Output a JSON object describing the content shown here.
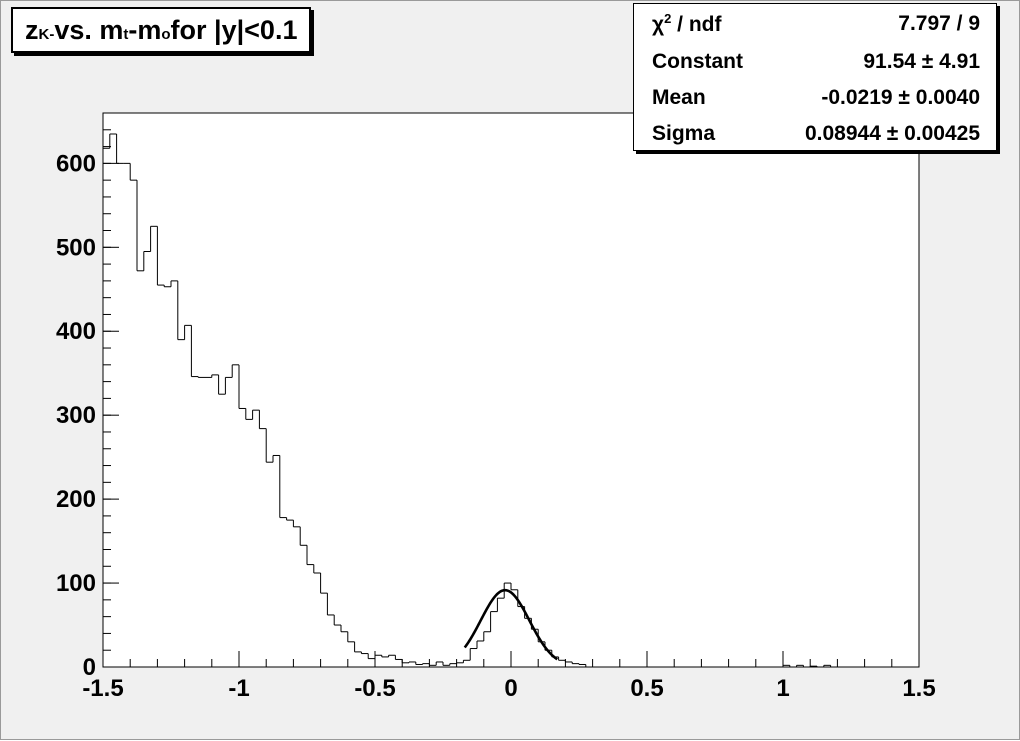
{
  "title": {
    "main": "z",
    "sub": "K-",
    "middle": " vs. m",
    "sub2": "t",
    "middle2": "-m",
    "sub3": "o",
    "tail": " for |y|<0.1"
  },
  "stats": {
    "chi2_symbol": "χ",
    "chi2_exp": "2",
    "chi2_label": " / ndf",
    "chi2_value": "7.797 / 9",
    "constant_label": "Constant",
    "constant_value": "91.54 ± 4.91",
    "mean_label": "Mean",
    "mean_value": "-0.0219 ± 0.0040",
    "sigma_label": "Sigma",
    "sigma_value": "0.08944 ± 0.00425"
  },
  "colors": {
    "frame_bg": "#f0f0f0",
    "plot_bg": "#ffffff",
    "line": "#000000"
  },
  "chart_data": {
    "type": "histogram",
    "title": "zK- vs. mt-mo for |y|<0.1",
    "xlim": [
      -1.5,
      1.5
    ],
    "ylim": [
      0,
      660
    ],
    "x_ticks": [
      "-1.5",
      "-1",
      "-0.5",
      "0",
      "0.5",
      "1",
      "1.5"
    ],
    "y_ticks": [
      "0",
      "100",
      "200",
      "300",
      "400",
      "500",
      "600"
    ],
    "bin_width": 0.025,
    "bins": [
      [
        -1.5,
        618
      ],
      [
        -1.475,
        635
      ],
      [
        -1.45,
        600
      ],
      [
        -1.425,
        600
      ],
      [
        -1.4,
        580
      ],
      [
        -1.375,
        472
      ],
      [
        -1.35,
        495
      ],
      [
        -1.325,
        525
      ],
      [
        -1.3,
        455
      ],
      [
        -1.275,
        453
      ],
      [
        -1.25,
        460
      ],
      [
        -1.225,
        390
      ],
      [
        -1.2,
        407
      ],
      [
        -1.175,
        346
      ],
      [
        -1.15,
        345
      ],
      [
        -1.125,
        345
      ],
      [
        -1.1,
        348
      ],
      [
        -1.075,
        325
      ],
      [
        -1.05,
        345
      ],
      [
        -1.025,
        360
      ],
      [
        -1.0,
        308
      ],
      [
        -0.975,
        295
      ],
      [
        -0.95,
        306
      ],
      [
        -0.925,
        284
      ],
      [
        -0.9,
        244
      ],
      [
        -0.875,
        252
      ],
      [
        -0.85,
        178
      ],
      [
        -0.825,
        175
      ],
      [
        -0.8,
        167
      ],
      [
        -0.775,
        145
      ],
      [
        -0.75,
        122
      ],
      [
        -0.725,
        112
      ],
      [
        -0.7,
        88
      ],
      [
        -0.675,
        62
      ],
      [
        -0.65,
        50
      ],
      [
        -0.625,
        42
      ],
      [
        -0.6,
        30
      ],
      [
        -0.575,
        18
      ],
      [
        -0.55,
        16
      ],
      [
        -0.525,
        10
      ],
      [
        -0.5,
        14
      ],
      [
        -0.475,
        12
      ],
      [
        -0.45,
        14
      ],
      [
        -0.425,
        9
      ],
      [
        -0.4,
        5
      ],
      [
        -0.375,
        6
      ],
      [
        -0.35,
        3
      ],
      [
        -0.325,
        4
      ],
      [
        -0.3,
        2
      ],
      [
        -0.275,
        6
      ],
      [
        -0.25,
        2
      ],
      [
        -0.225,
        4
      ],
      [
        -0.2,
        5
      ],
      [
        -0.175,
        8
      ],
      [
        -0.15,
        22
      ],
      [
        -0.125,
        31
      ],
      [
        -0.1,
        42
      ],
      [
        -0.075,
        66
      ],
      [
        -0.05,
        82
      ],
      [
        -0.025,
        100
      ],
      [
        0.0,
        92
      ],
      [
        0.025,
        72
      ],
      [
        0.05,
        58
      ],
      [
        0.075,
        45
      ],
      [
        0.1,
        30
      ],
      [
        0.125,
        20
      ],
      [
        0.15,
        12
      ],
      [
        0.175,
        8
      ],
      [
        0.2,
        6
      ],
      [
        0.225,
        4
      ],
      [
        0.25,
        3
      ],
      [
        0.275,
        0
      ],
      [
        1.0,
        2
      ],
      [
        1.05,
        2
      ],
      [
        1.1,
        1
      ],
      [
        1.15,
        2
      ]
    ],
    "fit": {
      "type": "gaussian",
      "constant": 91.54,
      "mean": -0.0219,
      "sigma": 0.08944,
      "range": [
        -0.17,
        0.17
      ]
    }
  }
}
